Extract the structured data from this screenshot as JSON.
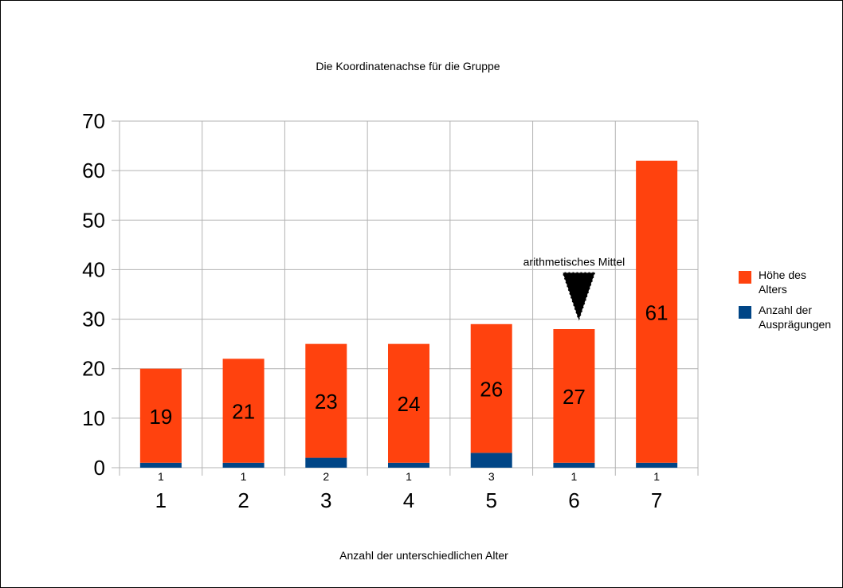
{
  "chart_data": {
    "type": "bar",
    "stacked": true,
    "title": "Die Koordinatenachse für die Gruppe",
    "xlabel": "Anzahl der unterschiedlichen Alter",
    "ylabel": "",
    "categories": [
      "1",
      "2",
      "3",
      "4",
      "5",
      "6",
      "7"
    ],
    "ylim": [
      0,
      70
    ],
    "yticks": [
      "0",
      "10",
      "20",
      "30",
      "40",
      "50",
      "60",
      "70"
    ],
    "grid": true,
    "legend_position": "right",
    "series": [
      {
        "name": "Anzahl der Ausprägungen",
        "color": "#004586",
        "values": [
          1,
          1,
          2,
          1,
          3,
          1,
          1
        ],
        "labels": [
          "1",
          "1",
          "2",
          "1",
          "3",
          "1",
          "1"
        ]
      },
      {
        "name": "Höhe des Alters",
        "color": "#ff420e",
        "values": [
          19,
          21,
          23,
          24,
          26,
          27,
          61
        ],
        "labels": [
          "19",
          "21",
          "23",
          "24",
          "26",
          "27",
          "61"
        ]
      }
    ],
    "annotation": {
      "text": "arithmetisches Mittel",
      "category": "6",
      "value": 29.5
    }
  }
}
